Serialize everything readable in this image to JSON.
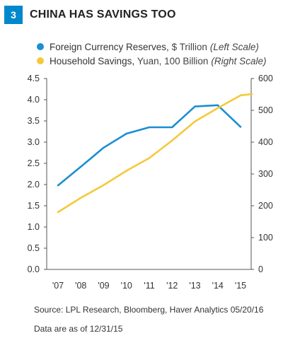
{
  "header": {
    "number": "3",
    "title": "CHINA HAS SAVINGS TOO"
  },
  "legend": [
    {
      "name": "Foreign Currency Reserves,",
      "unit": "$ Trillion",
      "scale": "(Left Scale)",
      "color": "#1a8fd1"
    },
    {
      "name": "Household Savings,",
      "unit": "Yuan, 100 Billion",
      "scale": "(Right Scale)",
      "color": "#f5c93a"
    }
  ],
  "chart_data": {
    "type": "line",
    "categories": [
      "'07",
      "'08",
      "'09",
      "'10",
      "'11",
      "'12",
      "'13",
      "'14",
      "'15"
    ],
    "left_axis": {
      "ticks": [
        "0.0",
        "0.5",
        "1.0",
        "1.5",
        "2.0",
        "2.5",
        "3.0",
        "3.5",
        "4.0",
        "4.5"
      ],
      "range": [
        0,
        4.5
      ]
    },
    "right_axis": {
      "ticks": [
        "0",
        "100",
        "200",
        "300",
        "400",
        "500",
        "600"
      ],
      "range": [
        0,
        600
      ]
    },
    "grid": false,
    "legend_position": "top-left",
    "series": [
      {
        "name": "Foreign Currency Reserves, $ Trillion (Left Scale)",
        "axis": "left",
        "color": "#1a8fd1",
        "x": [
          0,
          1,
          2,
          3,
          4,
          5,
          6,
          7,
          8
        ],
        "values": [
          1.98,
          2.42,
          2.87,
          3.2,
          3.35,
          3.35,
          3.84,
          3.87,
          3.36
        ]
      },
      {
        "name": "Household Savings, Yuan, 100 Billion (Right Scale)",
        "axis": "right",
        "color": "#f5c93a",
        "x": [
          0,
          1,
          2,
          3,
          4,
          5,
          6,
          7,
          8,
          8.5
        ],
        "values": [
          180,
          225,
          265,
          310,
          350,
          405,
          465,
          507,
          547,
          551
        ]
      }
    ]
  },
  "footer": {
    "source": "Source: LPL Research, Bloomberg, Haver Analytics   05/20/16",
    "note": "Data are as of 12/31/15"
  }
}
